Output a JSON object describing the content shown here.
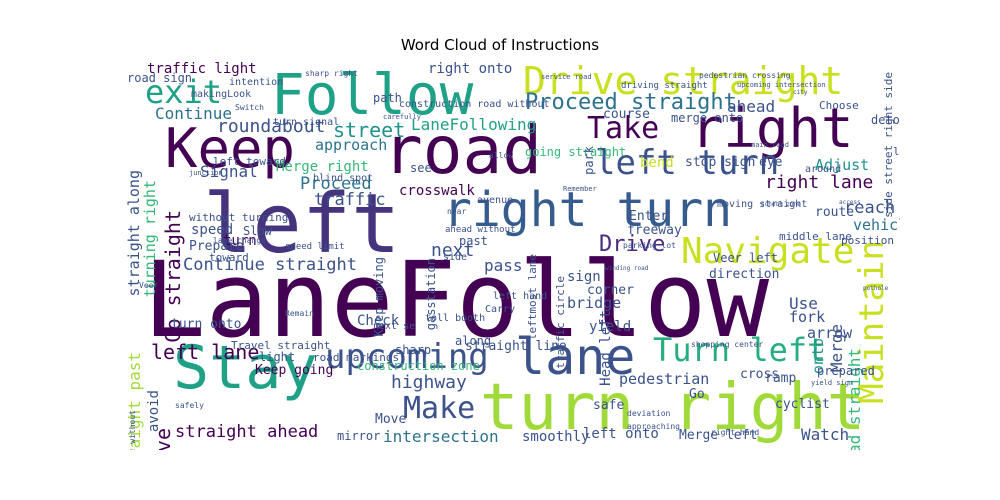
{
  "figure": {
    "title": "Word Cloud of Instructions",
    "background_color": "#ffffff",
    "colormap": "viridis"
  },
  "words": [
    {
      "text": "LaneFollow",
      "color": "#440154",
      "rotate": 0
    },
    {
      "text": "left",
      "color": "#46337e",
      "rotate": 0
    },
    {
      "text": "turn right",
      "color": "#a0da39",
      "rotate": 0
    },
    {
      "text": "road",
      "color": "#440154",
      "rotate": 0
    },
    {
      "text": "Stay",
      "color": "#1fa187",
      "rotate": 0
    },
    {
      "text": "Follow",
      "color": "#1fa187",
      "rotate": 0
    },
    {
      "text": "right turn",
      "color": "#365c8d",
      "rotate": 0
    },
    {
      "text": "right",
      "color": "#440154",
      "rotate": 0
    },
    {
      "text": "Keep",
      "color": "#440154",
      "rotate": 0
    },
    {
      "text": "Drive straight",
      "color": "#c8e020",
      "rotate": 0
    },
    {
      "text": "lane",
      "color": "#3b528b",
      "rotate": 0
    },
    {
      "text": "upcoming",
      "color": "#3b528b",
      "rotate": 0
    },
    {
      "text": "Navigate",
      "color": "#c8e020",
      "rotate": 0
    },
    {
      "text": "left turn",
      "color": "#3b528b",
      "rotate": 0
    },
    {
      "text": "Turn left",
      "color": "#27ad81",
      "rotate": 0
    },
    {
      "text": "Maintain",
      "color": "#c8e020",
      "rotate": -90
    },
    {
      "text": "Make",
      "color": "#3b528b",
      "rotate": 0
    },
    {
      "text": "exit",
      "color": "#1fa187",
      "rotate": 0
    },
    {
      "text": "Take",
      "color": "#440154",
      "rotate": 0
    },
    {
      "text": "Proceed straight",
      "color": "#2c728e",
      "rotate": 0
    },
    {
      "text": "Continue straight",
      "color": "#3b528b",
      "rotate": 0
    },
    {
      "text": "Go straight",
      "color": "#440154",
      "rotate": -90
    },
    {
      "text": "left lane",
      "color": "#440154",
      "rotate": 0
    },
    {
      "text": "intersection",
      "color": "#2c728e",
      "rotate": 0
    },
    {
      "text": "straight ahead",
      "color": "#440154",
      "rotate": 0
    },
    {
      "text": "Drive",
      "color": "#472d7b",
      "rotate": 0
    },
    {
      "text": "roundabout",
      "color": "#3b528b",
      "rotate": 0
    },
    {
      "text": "street",
      "color": "#21918c",
      "rotate": 0
    },
    {
      "text": "LaneFollowing",
      "color": "#1fa187",
      "rotate": 0
    },
    {
      "text": "highway",
      "color": "#3b528b",
      "rotate": 0
    },
    {
      "text": "curve",
      "color": "#440154",
      "rotate": -90
    },
    {
      "text": "Head straight",
      "color": "#35b779",
      "rotate": -90
    },
    {
      "text": "right lane",
      "color": "#440154",
      "rotate": 0
    },
    {
      "text": "Proceed",
      "color": "#2c728e",
      "rotate": 0
    },
    {
      "text": "traffic",
      "color": "#3b528b",
      "rotate": 0
    },
    {
      "text": "Signal",
      "color": "#3b528b",
      "rotate": 0
    },
    {
      "text": "Merge right",
      "color": "#35b779",
      "rotate": 0
    },
    {
      "text": "Continue",
      "color": "#2c728e",
      "rotate": 0
    },
    {
      "text": "approach",
      "color": "#2c728e",
      "rotate": 0
    },
    {
      "text": "ahead",
      "color": "#3b528b",
      "rotate": 0
    },
    {
      "text": "next",
      "color": "#3b528b",
      "rotate": 0
    },
    {
      "text": "pass",
      "color": "#3b528b",
      "rotate": 0
    },
    {
      "text": "Watch",
      "color": "#3b528b",
      "rotate": 0
    },
    {
      "text": "Adjust",
      "color": "#21918c",
      "rotate": 0
    },
    {
      "text": "reach",
      "color": "#3b528b",
      "rotate": 0
    },
    {
      "text": "vehicle",
      "color": "#2c728e",
      "rotate": 0
    },
    {
      "text": "Merge",
      "color": "#3b528b",
      "rotate": -90
    },
    {
      "text": "onto",
      "color": "#21918c",
      "rotate": -90
    },
    {
      "text": "fork",
      "color": "#3b528b",
      "rotate": 0
    },
    {
      "text": "Use",
      "color": "#3b528b",
      "rotate": 0
    },
    {
      "text": "arrow",
      "color": "#3b528b",
      "rotate": 0
    },
    {
      "text": "pedestrian",
      "color": "#3b528b",
      "rotate": 0
    },
    {
      "text": "left onto",
      "color": "#3b528b",
      "rotate": 0
    },
    {
      "text": "Merge left",
      "color": "#3b528b",
      "rotate": 0
    },
    {
      "text": "smoothly",
      "color": "#3b528b",
      "rotate": 0
    },
    {
      "text": "straight along",
      "color": "#3b528b",
      "rotate": -90
    },
    {
      "text": "turning right",
      "color": "#35b779",
      "rotate": -90
    },
    {
      "text": "straight past",
      "color": "#a0da39",
      "rotate": -90
    },
    {
      "text": "traffic light",
      "color": "#440154",
      "rotate": 0
    },
    {
      "text": "right onto",
      "color": "#3b528b",
      "rotate": 0
    },
    {
      "text": "Enter",
      "color": "#3b528b",
      "rotate": 0
    },
    {
      "text": "freeway",
      "color": "#3b528b",
      "rotate": 0
    },
    {
      "text": "sign",
      "color": "#3b528b",
      "rotate": 0
    },
    {
      "text": "bridge",
      "color": "#3b528b",
      "rotate": 0
    },
    {
      "text": "yield",
      "color": "#3b528b",
      "rotate": 0
    },
    {
      "text": "Head left",
      "color": "#3b528b",
      "rotate": -90
    },
    {
      "text": "crosswalk",
      "color": "#440154",
      "rotate": 0
    },
    {
      "text": "Check",
      "color": "#3b528b",
      "rotate": 0
    },
    {
      "text": "construction zone",
      "color": "#35b779",
      "rotate": 0
    },
    {
      "text": "Keep going",
      "color": "#440154",
      "rotate": 0
    },
    {
      "text": "speed",
      "color": "#3b528b",
      "rotate": 0
    },
    {
      "text": "turn",
      "color": "#440154",
      "rotate": 0
    },
    {
      "text": "avoid",
      "color": "#3b528b",
      "rotate": -90
    },
    {
      "text": "Prepare",
      "color": "#3b528b",
      "rotate": 0
    },
    {
      "text": "turn onto",
      "color": "#3b528b",
      "rotate": 0
    },
    {
      "text": "straight line",
      "color": "#3b528b",
      "rotate": 0
    },
    {
      "text": "going straight",
      "color": "#35b779",
      "rotate": 0
    },
    {
      "text": "safe",
      "color": "#3b528b",
      "rotate": 0
    },
    {
      "text": "Go",
      "color": "#3b528b",
      "rotate": 0
    },
    {
      "text": "corner",
      "color": "#3b528b",
      "rotate": 0
    },
    {
      "text": "bend",
      "color": "#c8e020",
      "rotate": 0
    },
    {
      "text": "stop sign",
      "color": "#3b528b",
      "rotate": 0
    },
    {
      "text": "eye",
      "color": "#3b528b",
      "rotate": 0
    },
    {
      "text": "route",
      "color": "#3b528b",
      "rotate": 0
    },
    {
      "text": "direction",
      "color": "#3b528b",
      "rotate": 0
    },
    {
      "text": "Veer left",
      "color": "#3b528b",
      "rotate": 0
    },
    {
      "text": "middle lane",
      "color": "#3b528b",
      "rotate": 0
    },
    {
      "text": "course",
      "color": "#3b528b",
      "rotate": 0
    },
    {
      "text": "park",
      "color": "#3b528b",
      "rotate": -90
    },
    {
      "text": "merge onto",
      "color": "#3b528b",
      "rotate": 0
    },
    {
      "text": "Move",
      "color": "#3b528b",
      "rotate": 0
    },
    {
      "text": "mirror",
      "color": "#3b528b",
      "rotate": 0
    },
    {
      "text": "cyclist",
      "color": "#3b528b",
      "rotate": 0
    },
    {
      "text": "ramp",
      "color": "#3b528b",
      "rotate": 0
    },
    {
      "text": "cross",
      "color": "#3b528b",
      "rotate": 0
    },
    {
      "text": "prepared",
      "color": "#3b528b",
      "rotate": 0
    },
    {
      "text": "see",
      "color": "#3b528b",
      "rotate": 0
    },
    {
      "text": "past",
      "color": "#3b528b",
      "rotate": 0
    },
    {
      "text": "left side",
      "color": "#3b528b",
      "rotate": 0
    },
    {
      "text": "detour",
      "color": "#3b528b",
      "rotate": 0
    },
    {
      "text": "position",
      "color": "#3b528b",
      "rotate": 0
    },
    {
      "text": "sharp",
      "color": "#3b528b",
      "rotate": 0
    },
    {
      "text": "Slow",
      "color": "#3b528b",
      "rotate": 0
    },
    {
      "text": "path",
      "color": "#3b528b",
      "rotate": 0
    },
    {
      "text": "along",
      "color": "#3b528b",
      "rotate": 0
    },
    {
      "text": "gasstation",
      "color": "#3b528b",
      "rotate": -90
    },
    {
      "text": "Keep moving",
      "color": "#3b528b",
      "rotate": -90
    },
    {
      "text": "left toward",
      "color": "#3b528b",
      "rotate": 0
    },
    {
      "text": "without turning",
      "color": "#3b528b",
      "rotate": 0
    },
    {
      "text": "Travel straight",
      "color": "#3b528b",
      "rotate": 0
    },
    {
      "text": "light",
      "color": "#3b528b",
      "rotate": 0
    },
    {
      "text": "road sign",
      "color": "#3b528b",
      "rotate": 0
    },
    {
      "text": "road markings",
      "color": "#3b528b",
      "rotate": 0
    },
    {
      "text": "toward",
      "color": "#3b528b",
      "rotate": 0
    },
    {
      "text": "blind spot",
      "color": "#3b528b",
      "rotate": 0
    },
    {
      "text": "left hand",
      "color": "#3b528b",
      "rotate": 0
    },
    {
      "text": "side street right side",
      "color": "#3b528b",
      "rotate": -90
    },
    {
      "text": "Choose",
      "color": "#3b528b",
      "rotate": 0
    },
    {
      "text": "makingLook",
      "color": "#3b528b",
      "rotate": 0
    },
    {
      "text": "intention",
      "color": "#3b528b",
      "rotate": 0
    },
    {
      "text": "construction road without",
      "color": "#3b528b",
      "rotate": 0
    },
    {
      "text": "toll booth",
      "color": "#3b528b",
      "rotate": 0
    },
    {
      "text": "leftmost lane",
      "color": "#3b528b",
      "rotate": -90
    },
    {
      "text": "traffic circle",
      "color": "#3b528b",
      "rotate": -90
    },
    {
      "text": "Carry",
      "color": "#3b528b",
      "rotate": 0
    },
    {
      "text": "next se",
      "color": "#3b528b",
      "rotate": 0
    },
    {
      "text": "ahead without",
      "color": "#3b528b",
      "rotate": 0
    },
    {
      "text": "turn signal",
      "color": "#3b528b",
      "rotate": 0
    },
    {
      "text": "moving straight",
      "color": "#3b528b",
      "rotate": 0
    },
    {
      "text": "around",
      "color": "#3b528b",
      "rotate": 0
    },
    {
      "text": "speed limit",
      "color": "#3b528b",
      "rotate": 0
    },
    {
      "text": "lane change",
      "color": "#3b528b",
      "rotate": 0
    },
    {
      "text": "Veer",
      "color": "#3b528b",
      "rotate": 0
    },
    {
      "text": "avenue",
      "color": "#3b528b",
      "rotate": 0
    },
    {
      "text": "side",
      "color": "#3b528b",
      "rotate": 0
    },
    {
      "text": "shopping center",
      "color": "#3b528b",
      "rotate": 0
    },
    {
      "text": "Remain",
      "color": "#3b528b",
      "rotate": 0
    },
    {
      "text": "deviation",
      "color": "#3b528b",
      "rotate": 0
    },
    {
      "text": "approaching",
      "color": "#3b528b",
      "rotate": 0
    },
    {
      "text": "right hand",
      "color": "#3b528b",
      "rotate": 0
    },
    {
      "text": "safely",
      "color": "#3b528b",
      "rotate": 0
    },
    {
      "text": "straight without",
      "color": "#3b528b",
      "rotate": -90
    },
    {
      "text": "pedestrian crossing",
      "color": "#3b528b",
      "rotate": 0
    },
    {
      "text": "driving straight",
      "color": "#3b528b",
      "rotate": 0
    },
    {
      "text": "sharp right",
      "color": "#3b528b",
      "rotate": 0
    },
    {
      "text": "carefully",
      "color": "#3b528b",
      "rotate": 0
    },
    {
      "text": "main road",
      "color": "#3b528b",
      "rotate": 0
    },
    {
      "text": "parking lot",
      "color": "#3b528b",
      "rotate": 0
    },
    {
      "text": "Switch",
      "color": "#3b528b",
      "rotate": 0
    },
    {
      "text": "junction",
      "color": "#3b528b",
      "rotate": 0
    },
    {
      "text": "upcoming intersection",
      "color": "#3b528b",
      "rotate": 0
    },
    {
      "text": "service road",
      "color": "#3b528b",
      "rotate": 0
    },
    {
      "text": "allow",
      "color": "#3b528b",
      "rotate": 0
    },
    {
      "text": "Remember",
      "color": "#3b528b",
      "rotate": 0
    },
    {
      "text": "winding road",
      "color": "#3b528b",
      "rotate": 0
    },
    {
      "text": "near",
      "color": "#3b528b",
      "rotate": 0
    },
    {
      "text": "yield sign",
      "color": "#3b528b",
      "rotate": 0
    },
    {
      "text": "access",
      "color": "#3b528b",
      "rotate": 0
    },
    {
      "text": "pothole",
      "color": "#3b528b",
      "rotate": 0
    },
    {
      "text": "city",
      "color": "#3b528b",
      "rotate": 0
    },
    {
      "text": "school zone",
      "color": "#3b528b",
      "rotate": 0
    }
  ]
}
